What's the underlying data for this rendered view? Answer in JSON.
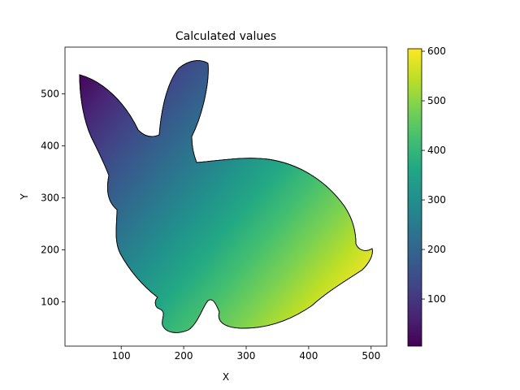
{
  "chart_data": {
    "type": "heatmap",
    "title": "Calculated values",
    "xlabel": "X",
    "ylabel": "Y",
    "xlim": [
      10,
      525
    ],
    "ylim": [
      15,
      590
    ],
    "xticks": [
      100,
      200,
      300,
      400,
      500
    ],
    "yticks": [
      100,
      200,
      300,
      400,
      500
    ],
    "colorbar": {
      "colormap": "viridis",
      "range": [
        5,
        605
      ],
      "ticks": [
        100,
        200,
        300,
        400,
        500,
        600
      ]
    },
    "field": "approximately x + (600 - y) - 50, rising from the ear tip (~5) toward the lower right (~600)",
    "grid": false,
    "legend": "none",
    "mesh": "black triangular mesh over a bunny-shaped outline"
  }
}
